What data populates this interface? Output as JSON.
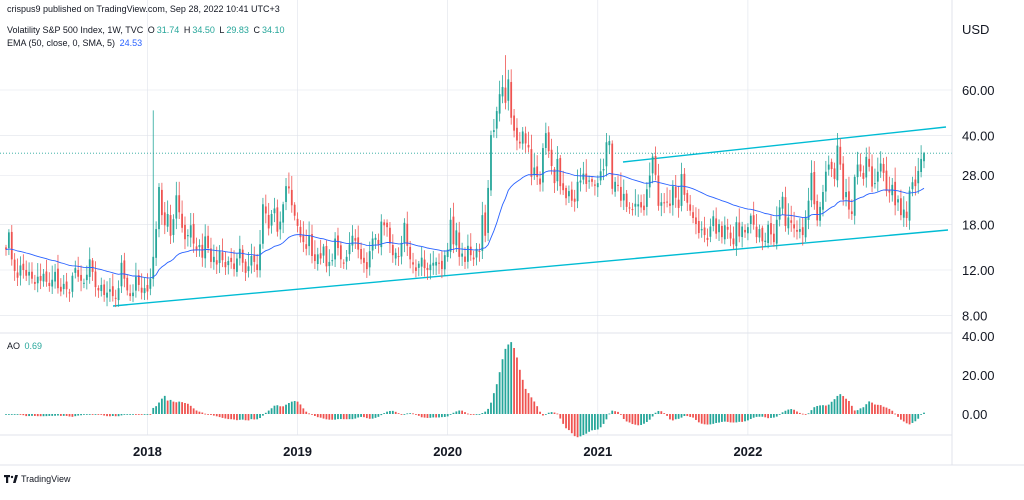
{
  "header": {
    "publisher": "crispus9 published on TradingView.com, Sep 28, 2022 10:41 UTC+3",
    "symbol_desc": "Volatility S&P 500 Index, 1W, TVC",
    "ohlc": [
      {
        "key": "O",
        "value": "31.74"
      },
      {
        "key": "H",
        "value": "34.50"
      },
      {
        "key": "L",
        "value": "29.83"
      },
      {
        "key": "C",
        "value": "34.10"
      }
    ],
    "ema_label": "EMA (50, close, 0, SMA, 5)",
    "ema_value": "24.53",
    "ao_label": "AO",
    "ao_value": "0.69",
    "currency": "USD"
  },
  "footer": {
    "brand": "TradingView"
  },
  "colors": {
    "up": "#26a69a",
    "down": "#ef5350",
    "ema": "#2962ff",
    "trendline": "#00bcd4",
    "last_price_line": "#26a69a",
    "grid": "#e0e3eb"
  },
  "chart_data": [
    {
      "type": "candlestick",
      "name": "Volatility S&P 500 Index",
      "x_ticks": [
        "2018",
        "2019",
        "2020",
        "2021",
        "2022"
      ],
      "y_scale": "log",
      "y_ticks": [
        "60.00",
        "40.00",
        "28.00",
        "18.00",
        "12.00",
        "8.00"
      ],
      "last_close": 34.1,
      "ema_last": 24.53,
      "weekly_closes": [
        14.4,
        16.8,
        13.2,
        11.9,
        11.2,
        12.5,
        12.0,
        11.4,
        11.8,
        11.1,
        10.6,
        11.3,
        10.9,
        11.6,
        10.8,
        10.4,
        11.0,
        11.8,
        10.2,
        9.9,
        10.6,
        10.1,
        9.8,
        11.4,
        12.2,
        11.3,
        10.9,
        10.7,
        11.5,
        13.2,
        11.8,
        10.3,
        10.0,
        10.5,
        9.6,
        9.8,
        10.1,
        9.5,
        9.3,
        10.2,
        12.8,
        11.1,
        10.0,
        9.5,
        9.8,
        11.3,
        10.5,
        9.8,
        10.2,
        9.9,
        11.1,
        13.5,
        17.3,
        25.2,
        19.6,
        17.9,
        19.8,
        16.3,
        18.9,
        23.4,
        20.1,
        17.5,
        15.8,
        16.4,
        17.9,
        15.2,
        14.3,
        15.0,
        13.4,
        16.2,
        14.6,
        12.9,
        13.5,
        12.6,
        14.2,
        13.1,
        12.3,
        13.0,
        12.9,
        12.1,
        13.3,
        14.5,
        12.8,
        11.7,
        12.4,
        13.6,
        12.9,
        12.0,
        15.1,
        21.6,
        19.9,
        17.4,
        19.8,
        20.8,
        16.9,
        18.5,
        21.6,
        25.4,
        24.9,
        21.4,
        19.5,
        17.8,
        16.1,
        15.4,
        14.5,
        16.4,
        13.6,
        13.0,
        13.8,
        13.3,
        14.8,
        12.4,
        12.9,
        13.1,
        15.9,
        14.6,
        13.2,
        12.7,
        13.5,
        15.1,
        16.3,
        15.6,
        14.4,
        13.2,
        12.8,
        12.1,
        14.2,
        15.9,
        16.0,
        15.1,
        18.5,
        17.9,
        17.6,
        15.2,
        13.7,
        14.0,
        13.5,
        15.3,
        18.3,
        14.9,
        13.2,
        12.6,
        11.9,
        12.7,
        13.4,
        12.2,
        12.0,
        12.6,
        12.8,
        12.9,
        12.7,
        12.1,
        13.7,
        14.4,
        18.8,
        15.1,
        17.1,
        13.5,
        13.9,
        12.9,
        14.9,
        13.7,
        13.2,
        14.5,
        14.2,
        19.6,
        16.3,
        25.0,
        40.1,
        41.9,
        49.7,
        57.8,
        61.6,
        53.5,
        66.0,
        46.8,
        41.7,
        38.2,
        37.2,
        41.4,
        37.2,
        35.9,
        27.6,
        30.0,
        27.6,
        25.8,
        35.7,
        40.8,
        34.7,
        30.4,
        26.1,
        32.4,
        25.4,
        24.5,
        22.8,
        24.3,
        22.3,
        22.1,
        26.4,
        26.7,
        28.4,
        25.9,
        26.7,
        26.4,
        25.5,
        26.1,
        29.0,
        29.6,
        37.6,
        38.0,
        24.8,
        26.4,
        25.6,
        22.3,
        23.7,
        21.1,
        20.8,
        20.6,
        21.7,
        21.6,
        21.0,
        20.5,
        24.7,
        27.9,
        33.1,
        28.1,
        21.3,
        22.0,
        21.8,
        22.1,
        21.3,
        25.4,
        22.9,
        20.9,
        28.3,
        23.5,
        21.9,
        20.4,
        19.1,
        18.1,
        16.7,
        17.3,
        16.4,
        15.7,
        17.7,
        19.4,
        16.6,
        18.1,
        16.1,
        17.9,
        17.2,
        15.9,
        15.1,
        18.4,
        16.2,
        17.7,
        16.8,
        17.6,
        19.5,
        18.0,
        16.1,
        17.3,
        15.5,
        15.6,
        18.0,
        16.5,
        15.4,
        18.8,
        21.0,
        23.1,
        17.8,
        19.2,
        18.3,
        17.4,
        16.9,
        17.3,
        16.4,
        19.3,
        22.3,
        28.6,
        21.6,
        18.7,
        21.1,
        24.1,
        28.9,
        30.8,
        29.6,
        27.1,
        36.5,
        30.8,
        22.5,
        24.1,
        20.6,
        19.8,
        27.6,
        30.8,
        29.0,
        27.1,
        33.0,
        30.2,
        25.3,
        26.1,
        28.9,
        31.1,
        28.6,
        24.3,
        24.0,
        25.7,
        21.4,
        22.6,
        19.6,
        20.6,
        19.1,
        24.4,
        26.3,
        25.4,
        29.1,
        32.4,
        34.1
      ]
    },
    {
      "type": "bar",
      "name": "AO",
      "y_ticks": [
        "40.00",
        "20.00",
        "0.00"
      ],
      "last_value": 0.69
    }
  ]
}
